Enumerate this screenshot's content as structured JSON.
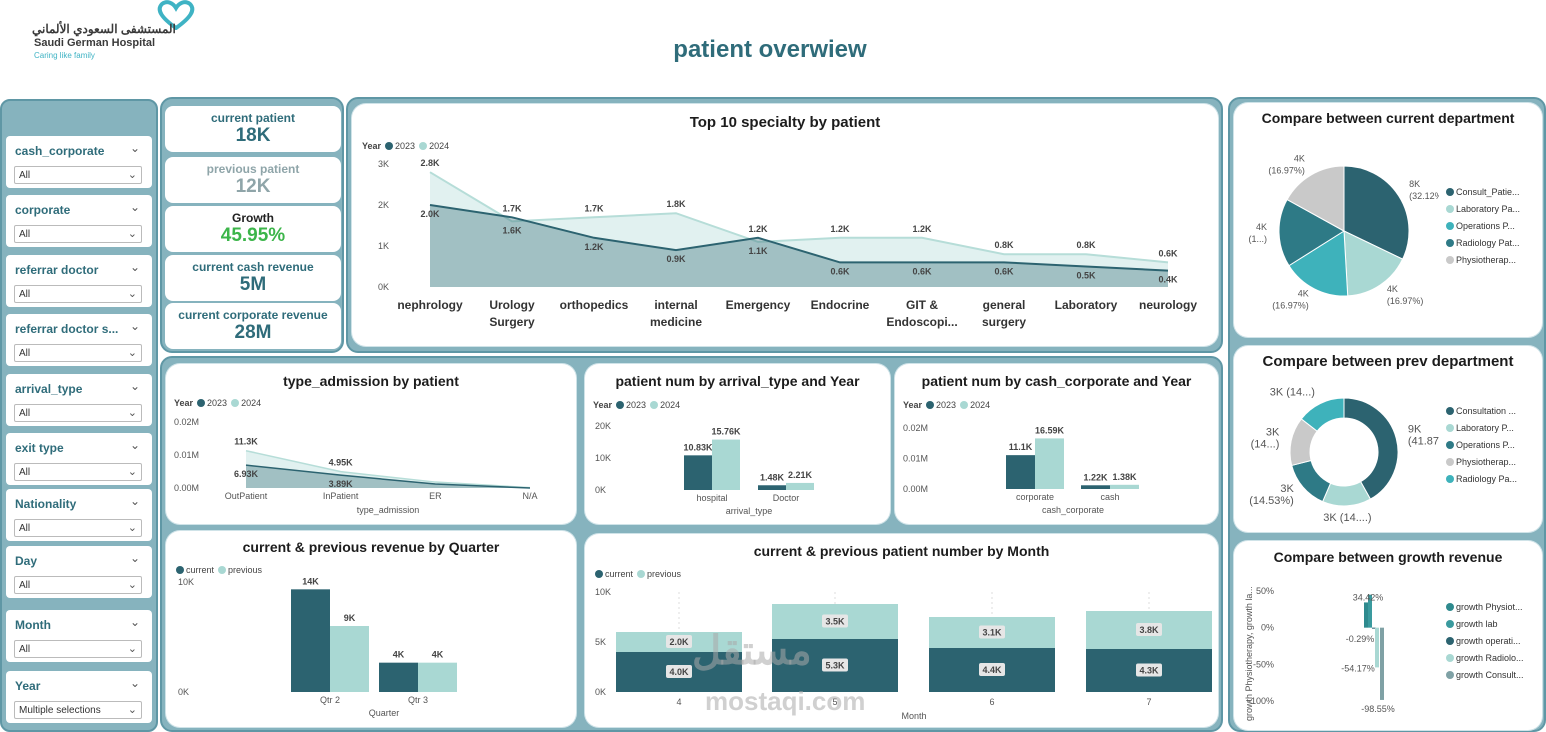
{
  "header": {
    "logo_arabic": "المستشفى السعودي الألماني",
    "logo_english": "Saudi German Hospital",
    "logo_tagline": "Caring like family",
    "page_title": "patient overwiew"
  },
  "colors": {
    "dark": "#2c6370",
    "light": "#a9d8d3",
    "teal": "#3eb2bb",
    "gray": "#c9c9c9",
    "accent_green": "#3cb54a"
  },
  "filters": [
    {
      "label": "cash_corporate",
      "value": "All"
    },
    {
      "label": "corporate",
      "value": "All"
    },
    {
      "label": "referrar doctor",
      "value": "All"
    },
    {
      "label": "referrar doctor s...",
      "value": "All"
    },
    {
      "label": "arrival_type",
      "value": "All"
    },
    {
      "label": "exit type",
      "value": "All"
    },
    {
      "label": "Nationality",
      "value": "All"
    },
    {
      "label": "Day",
      "value": "All"
    },
    {
      "label": "Month",
      "value": "All"
    },
    {
      "label": "Year",
      "value": "Multiple selections"
    }
  ],
  "kpis": [
    {
      "label": "current patient",
      "value": "18K"
    },
    {
      "label": "previous patient",
      "value": "12K"
    },
    {
      "label": "Growth",
      "value": "45.95%"
    },
    {
      "label": "current cash revenue",
      "value": "5M"
    },
    {
      "label": "current corporate revenue",
      "value": "28M"
    }
  ],
  "legend_year": {
    "label": "Year",
    "a": "2023",
    "b": "2024"
  },
  "legend_period": {
    "a": "current",
    "b": "previous"
  },
  "chart_data": [
    {
      "id": "top10",
      "type": "area",
      "title": "Top 10 specialty by patient",
      "categories": [
        "nephrology",
        "Urology Surgery",
        "orthopedics",
        "internal medicine",
        "Emergency",
        "Endocrine",
        "GIT & Endoscopi...",
        "general surgery",
        "Laboratory",
        "neurology"
      ],
      "category_lines": [
        [
          "nephrology"
        ],
        [
          "Urology",
          "Surgery"
        ],
        [
          "orthopedics"
        ],
        [
          "internal",
          "medicine"
        ],
        [
          "Emergency"
        ],
        [
          "Endocrine"
        ],
        [
          "GIT &",
          "Endoscopi..."
        ],
        [
          "general",
          "surgery"
        ],
        [
          "Laboratory"
        ],
        [
          "neurology"
        ]
      ],
      "series": [
        {
          "name": "2023",
          "values": [
            2000,
            1700,
            1200,
            900,
            1200,
            600,
            600,
            600,
            500,
            400
          ],
          "labels": [
            "2.0K",
            "1.7K",
            "1.2K",
            "0.9K",
            "1.2K",
            "0.6K",
            "0.6K",
            "0.6K",
            "0.5K",
            "0.4K"
          ]
        },
        {
          "name": "2024",
          "values": [
            2800,
            1600,
            1700,
            1800,
            1100,
            1200,
            1200,
            800,
            800,
            600
          ],
          "labels": [
            "2.8K",
            "1.6K",
            "1.7K",
            "1.8K",
            "1.1K",
            "1.2K",
            "1.2K",
            "0.8K",
            "0.8K",
            "0.6K"
          ]
        }
      ],
      "yticks": [
        "0K",
        "1K",
        "2K",
        "3K"
      ],
      "ylim": [
        0,
        3000
      ]
    },
    {
      "id": "admission",
      "type": "area",
      "title": "type_admission by patient",
      "xlabel": "type_admission",
      "categories": [
        "OutPatient",
        "InPatient",
        "ER",
        "N/A"
      ],
      "series": [
        {
          "name": "2023",
          "values": [
            6930,
            3890,
            1200,
            0
          ],
          "labels": [
            "6.93K",
            "3.89K",
            "",
            ""
          ]
        },
        {
          "name": "2024",
          "values": [
            11300,
            4950,
            1800,
            100
          ],
          "labels": [
            "11.3K",
            "4.95K",
            "",
            ""
          ]
        }
      ],
      "yticks": [
        "0.00M",
        "0.01M",
        "0.02M"
      ],
      "ylim": [
        0,
        20000
      ]
    },
    {
      "id": "arrival",
      "type": "bar",
      "title": "patient num by arrival_type and Year",
      "xlabel": "arrival_type",
      "categories": [
        "hospital",
        "Doctor"
      ],
      "series": [
        {
          "name": "2023",
          "values": [
            10830,
            1480
          ],
          "labels": [
            "10.83K",
            "1.48K"
          ]
        },
        {
          "name": "2024",
          "values": [
            15760,
            2210
          ],
          "labels": [
            "15.76K",
            "2.21K"
          ]
        }
      ],
      "yticks": [
        "0K",
        "10K",
        "20K"
      ],
      "ylim": [
        0,
        20000
      ]
    },
    {
      "id": "cashcorp",
      "type": "bar",
      "title": "patient num by cash_corporate and Year",
      "xlabel": "cash_corporate",
      "categories": [
        "corporate",
        "cash"
      ],
      "series": [
        {
          "name": "2023",
          "values": [
            11100,
            1220
          ],
          "labels": [
            "11.1K",
            "1.22K"
          ]
        },
        {
          "name": "2024",
          "values": [
            16590,
            1380
          ],
          "labels": [
            "16.59K",
            "1.38K"
          ]
        }
      ],
      "yticks": [
        "0.00M",
        "0.01M",
        "0.02M"
      ],
      "ylim": [
        0,
        20000
      ]
    },
    {
      "id": "quarter",
      "type": "bar",
      "title": "current & previous revenue by Quarter",
      "xlabel": "Quarter",
      "categories": [
        "Qtr 2",
        "Qtr 3"
      ],
      "series": [
        {
          "name": "current",
          "values": [
            14000,
            4000
          ],
          "labels": [
            "14K",
            "4K"
          ]
        },
        {
          "name": "previous",
          "values": [
            9000,
            4000
          ],
          "labels": [
            "9K",
            "4K"
          ]
        }
      ],
      "yticks": [
        "0K",
        "10K"
      ],
      "ylim": [
        0,
        15000
      ]
    },
    {
      "id": "month",
      "type": "bar",
      "title": "current & previous patient number by Month",
      "xlabel": "Month",
      "categories": [
        "4",
        "5",
        "6",
        "7"
      ],
      "series": [
        {
          "name": "current",
          "values": [
            4000,
            5300,
            4400,
            4300
          ],
          "labels": [
            "4.0K",
            "5.3K",
            "4.4K",
            "4.3K"
          ]
        },
        {
          "name": "previous",
          "values": [
            2000,
            3500,
            3100,
            3800
          ],
          "labels": [
            "2.0K",
            "3.5K",
            "3.1K",
            "3.8K"
          ]
        }
      ],
      "yticks": [
        "0K",
        "5K",
        "10K"
      ],
      "ylim": [
        0,
        10000
      ]
    },
    {
      "id": "curdept",
      "type": "pie",
      "title": "Compare between current department",
      "slices": [
        {
          "name": "Consult_Patie...",
          "value": 32.12,
          "label": [
            "8K",
            "(32.12%)"
          ]
        },
        {
          "name": "Laboratory Pa...",
          "value": 16.97,
          "label": [
            "4K",
            "(16.97%)"
          ]
        },
        {
          "name": "Operations P...",
          "value": 16.97,
          "label": [
            "4K",
            "(16.97%)"
          ]
        },
        {
          "name": "Radiology Pat...",
          "value": 16.97,
          "label": [
            "4K",
            "(1...)"
          ]
        },
        {
          "name": "Physiotherap...",
          "value": 16.97,
          "label": [
            "4K",
            "(16.97%)"
          ]
        }
      ]
    },
    {
      "id": "prevdept",
      "type": "pie",
      "title": "Compare between prev department",
      "slices": [
        {
          "name": "Consultation ...",
          "value": 41.87,
          "label": [
            "9K",
            "(41.87%)"
          ]
        },
        {
          "name": "Laboratory P...",
          "value": 14.6,
          "label": [
            "3K (14....)"
          ]
        },
        {
          "name": "Operations P...",
          "value": 14.53,
          "label": [
            "3K",
            "(14.53%)"
          ]
        },
        {
          "name": "Physiotherap...",
          "value": 14.5,
          "label": [
            "3K",
            "(14...)"
          ]
        },
        {
          "name": "Radiology Pa...",
          "value": 14.5,
          "label": [
            "3K (14...)"
          ]
        }
      ]
    },
    {
      "id": "growth",
      "type": "bar",
      "title": "Compare between growth revenue",
      "ylabel": "growth Physiotherapy, growth la...",
      "series": [
        {
          "name": "growth Physiot...",
          "value": 34.42,
          "label": "34.42%"
        },
        {
          "name": "growth lab",
          "value": 45,
          "label": ""
        },
        {
          "name": "growth operati...",
          "value": -0.29,
          "label": "-0.29%"
        },
        {
          "name": "growth Radiolo...",
          "value": -54.17,
          "label": "-54.17%"
        },
        {
          "name": "growth Consult...",
          "value": -98.55,
          "label": "-98.55%"
        }
      ],
      "yticks": [
        "50%",
        "0%",
        "-50%",
        "-100%"
      ],
      "ylim": [
        -100,
        50
      ]
    }
  ]
}
